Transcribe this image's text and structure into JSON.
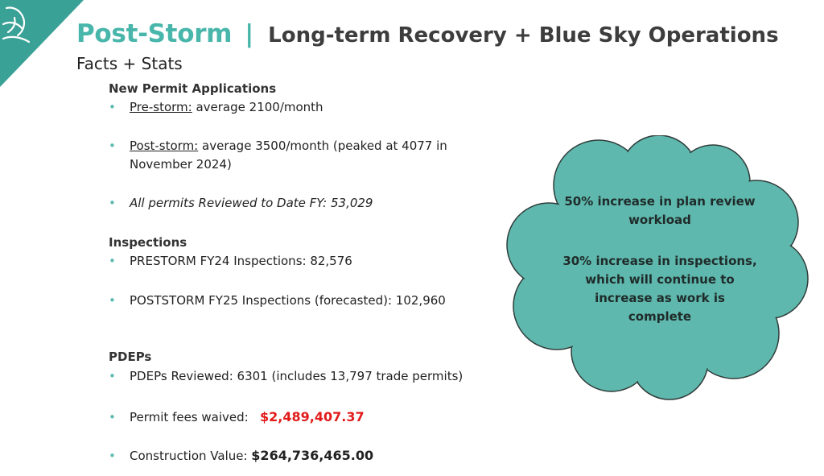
{
  "title": {
    "main": "Post-Storm",
    "separator": "|",
    "subtitle": "Long-term Recovery + Blue Sky Operations"
  },
  "subheading": "Facts + Stats",
  "permits": {
    "heading": "New Permit Applications",
    "pre_label": "Pre-storm:",
    "pre_value": " average 2100/month",
    "post_label": "Post-storm:",
    "post_value_1": " average 3500/month (peaked at 4077 in",
    "post_value_2": "November 2024)",
    "reviewed": "All permits Reviewed to Date FY: 53,029"
  },
  "inspections": {
    "heading": "Inspections",
    "prestorm": "PRESTORM FY24 Inspections: 82,576",
    "poststorm": "POSTSTORM FY25 Inspections (forecasted): 102,960"
  },
  "pdeps": {
    "heading": "PDEPs",
    "reviewed": "PDEPs Reviewed: 6301 (includes 13,797 trade permits)",
    "fees_label": "Permit fees waived:",
    "fees_value": "$2,489,407.37",
    "construction_label": "Construction Value: ",
    "construction_value": "$264,736,465.00"
  },
  "cloud": {
    "line1": "50% increase in plan review",
    "line2": "workload",
    "line3": "30% increase in inspections,",
    "line4": "which will continue to",
    "line5": "increase as work is",
    "line6": "complete"
  },
  "colors": {
    "accent": "#49b6ab",
    "cloud_fill": "#5fb8ad",
    "red": "#e21b1b"
  },
  "icons": {
    "corner_logo": "bird-logo-icon"
  }
}
